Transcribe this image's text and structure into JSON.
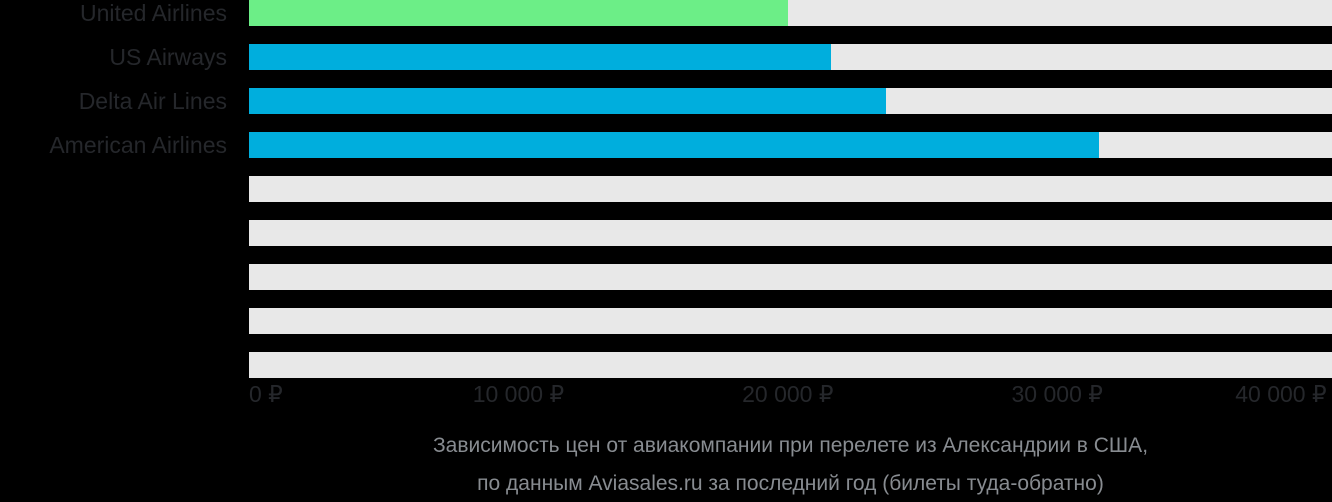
{
  "chart_data": {
    "type": "bar",
    "orientation": "horizontal",
    "title_lines": [
      "Зависимость цен от авиакомпании при перелете из Александрии в США,",
      "по данным Aviasales.ru за последний год (билеты туда-обратно)"
    ],
    "categories": [
      "United Airlines",
      "US Airways",
      "Delta Air Lines",
      "American Airlines"
    ],
    "values": [
      20000,
      21600,
      23650,
      31550
    ],
    "rows": [
      {
        "label": "United Airlines",
        "value": 20000,
        "color": "#6cee87"
      },
      {
        "label": "US Airways",
        "value": 21600,
        "color": "#00aedd"
      },
      {
        "label": "Delta Air Lines",
        "value": 23650,
        "color": "#00aedd"
      },
      {
        "label": "American Airlines",
        "value": 31550,
        "color": "#00aedd"
      },
      {
        "label": "",
        "value": null
      },
      {
        "label": "",
        "value": null
      },
      {
        "label": "",
        "value": null
      },
      {
        "label": "",
        "value": null
      },
      {
        "label": "",
        "value": null
      }
    ],
    "x_ticks": [
      "0 ₽",
      "10 000 ₽",
      "20 000 ₽",
      "30 000 ₽",
      "40 000 ₽"
    ],
    "x_tick_values": [
      0,
      10000,
      20000,
      30000,
      40000
    ],
    "axis_max": 40200,
    "xlabel": "",
    "ylabel": "",
    "ylim": [
      0,
      40200
    ],
    "grid": false,
    "legend": "none",
    "currency": "₽",
    "colors": {
      "bar_green": "#6cee87",
      "bar_cyan": "#00aedd",
      "track": "#e8e8e8",
      "background": "#000000",
      "label_text": "#25272b",
      "title_text": "#888c91"
    }
  }
}
